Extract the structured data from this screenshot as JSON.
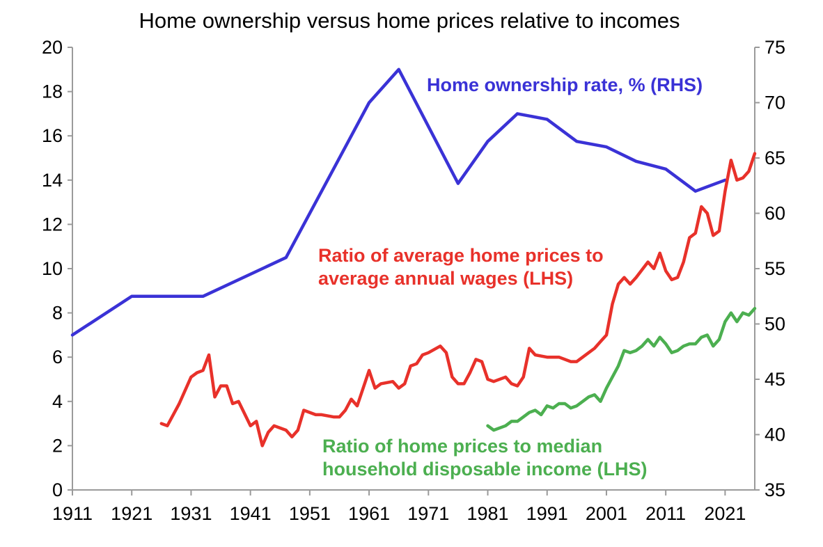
{
  "chart_data": {
    "type": "line",
    "title": "Home ownership versus home prices relative to incomes",
    "x_ticks": [
      "1911",
      "1921",
      "1931",
      "1941",
      "1951",
      "1961",
      "1971",
      "1981",
      "1991",
      "2001",
      "2011",
      "2021"
    ],
    "xlim": [
      1911,
      2026
    ],
    "y_left": {
      "lim": [
        0,
        20
      ],
      "ticks": [
        "0",
        "2",
        "4",
        "6",
        "8",
        "10",
        "12",
        "14",
        "16",
        "18",
        "20"
      ]
    },
    "y_right": {
      "lim": [
        35,
        75
      ],
      "ticks": [
        "35",
        "40",
        "45",
        "50",
        "55",
        "60",
        "65",
        "70",
        "75"
      ]
    },
    "grid": false,
    "series": [
      {
        "key": "ownership",
        "axis": "right",
        "color": "#3a32d6",
        "label": "Home ownership rate, %  (RHS)",
        "points": [
          [
            1911,
            49.0
          ],
          [
            1921,
            52.5
          ],
          [
            1933,
            52.5
          ],
          [
            1947,
            56.0
          ],
          [
            1961,
            70.0
          ],
          [
            1966,
            73.0
          ],
          [
            1976,
            62.7
          ],
          [
            1981,
            66.5
          ],
          [
            1986,
            69.0
          ],
          [
            1991,
            68.5
          ],
          [
            1996,
            66.5
          ],
          [
            2001,
            66.0
          ],
          [
            2006,
            64.7
          ],
          [
            2011,
            64.0
          ],
          [
            2016,
            62.0
          ],
          [
            2021,
            63.0
          ]
        ]
      },
      {
        "key": "wages",
        "axis": "left",
        "color": "#e8312a",
        "label_lines": [
          "Ratio of average home prices to",
          "average annual wages (LHS)"
        ],
        "points": [
          [
            1926,
            3.0
          ],
          [
            1927,
            2.9
          ],
          [
            1929,
            3.9
          ],
          [
            1931,
            5.1
          ],
          [
            1932,
            5.3
          ],
          [
            1933,
            5.4
          ],
          [
            1934,
            6.1
          ],
          [
            1935,
            4.2
          ],
          [
            1936,
            4.7
          ],
          [
            1937,
            4.7
          ],
          [
            1938,
            3.9
          ],
          [
            1939,
            4.0
          ],
          [
            1941,
            2.9
          ],
          [
            1942,
            3.1
          ],
          [
            1943,
            2.0
          ],
          [
            1944,
            2.6
          ],
          [
            1945,
            2.9
          ],
          [
            1946,
            2.8
          ],
          [
            1947,
            2.7
          ],
          [
            1948,
            2.4
          ],
          [
            1949,
            2.7
          ],
          [
            1950,
            3.6
          ],
          [
            1952,
            3.4
          ],
          [
            1953,
            3.4
          ],
          [
            1955,
            3.3
          ],
          [
            1956,
            3.3
          ],
          [
            1957,
            3.6
          ],
          [
            1958,
            4.1
          ],
          [
            1959,
            3.8
          ],
          [
            1961,
            5.4
          ],
          [
            1962,
            4.6
          ],
          [
            1963,
            4.8
          ],
          [
            1965,
            4.9
          ],
          [
            1966,
            4.6
          ],
          [
            1967,
            4.8
          ],
          [
            1968,
            5.6
          ],
          [
            1969,
            5.7
          ],
          [
            1970,
            6.1
          ],
          [
            1971,
            6.2
          ],
          [
            1973,
            6.5
          ],
          [
            1974,
            6.2
          ],
          [
            1975,
            5.1
          ],
          [
            1976,
            4.8
          ],
          [
            1977,
            4.8
          ],
          [
            1978,
            5.3
          ],
          [
            1979,
            5.9
          ],
          [
            1980,
            5.8
          ],
          [
            1981,
            5.0
          ],
          [
            1982,
            4.9
          ],
          [
            1984,
            5.1
          ],
          [
            1985,
            4.8
          ],
          [
            1986,
            4.7
          ],
          [
            1987,
            5.1
          ],
          [
            1988,
            6.4
          ],
          [
            1989,
            6.1
          ],
          [
            1991,
            6.0
          ],
          [
            1993,
            6.0
          ],
          [
            1995,
            5.8
          ],
          [
            1996,
            5.8
          ],
          [
            1998,
            6.2
          ],
          [
            1999,
            6.4
          ],
          [
            2000,
            6.7
          ],
          [
            2001,
            7.0
          ],
          [
            2002,
            8.4
          ],
          [
            2003,
            9.3
          ],
          [
            2004,
            9.6
          ],
          [
            2005,
            9.3
          ],
          [
            2006,
            9.6
          ],
          [
            2008,
            10.3
          ],
          [
            2009,
            10.0
          ],
          [
            2010,
            10.7
          ],
          [
            2011,
            9.9
          ],
          [
            2012,
            9.5
          ],
          [
            2013,
            9.6
          ],
          [
            2014,
            10.3
          ],
          [
            2015,
            11.4
          ],
          [
            2016,
            11.6
          ],
          [
            2017,
            12.8
          ],
          [
            2018,
            12.5
          ],
          [
            2019,
            11.5
          ],
          [
            2020,
            11.7
          ],
          [
            2021,
            13.5
          ],
          [
            2022,
            14.9
          ],
          [
            2023,
            14.0
          ],
          [
            2024,
            14.1
          ],
          [
            2025,
            14.4
          ],
          [
            2026,
            15.2
          ]
        ]
      },
      {
        "key": "median",
        "axis": "left",
        "color": "#4caf50",
        "label_lines": [
          "Ratio of home prices to median",
          "household disposable income (LHS)"
        ],
        "points": [
          [
            1981,
            2.9
          ],
          [
            1982,
            2.7
          ],
          [
            1984,
            2.9
          ],
          [
            1985,
            3.1
          ],
          [
            1986,
            3.1
          ],
          [
            1987,
            3.3
          ],
          [
            1988,
            3.5
          ],
          [
            1989,
            3.6
          ],
          [
            1990,
            3.4
          ],
          [
            1991,
            3.8
          ],
          [
            1992,
            3.7
          ],
          [
            1993,
            3.9
          ],
          [
            1994,
            3.9
          ],
          [
            1995,
            3.7
          ],
          [
            1996,
            3.8
          ],
          [
            1997,
            4.0
          ],
          [
            1998,
            4.2
          ],
          [
            1999,
            4.3
          ],
          [
            2000,
            4.0
          ],
          [
            2001,
            4.6
          ],
          [
            2002,
            5.1
          ],
          [
            2003,
            5.6
          ],
          [
            2004,
            6.3
          ],
          [
            2005,
            6.2
          ],
          [
            2006,
            6.3
          ],
          [
            2007,
            6.5
          ],
          [
            2008,
            6.8
          ],
          [
            2009,
            6.5
          ],
          [
            2010,
            6.9
          ],
          [
            2011,
            6.6
          ],
          [
            2012,
            6.2
          ],
          [
            2013,
            6.3
          ],
          [
            2014,
            6.5
          ],
          [
            2015,
            6.6
          ],
          [
            2016,
            6.6
          ],
          [
            2017,
            6.9
          ],
          [
            2018,
            7.0
          ],
          [
            2019,
            6.5
          ],
          [
            2020,
            6.8
          ],
          [
            2021,
            7.6
          ],
          [
            2022,
            8.0
          ],
          [
            2023,
            7.6
          ],
          [
            2024,
            8.0
          ],
          [
            2025,
            7.9
          ],
          [
            2026,
            8.2
          ]
        ]
      }
    ]
  }
}
